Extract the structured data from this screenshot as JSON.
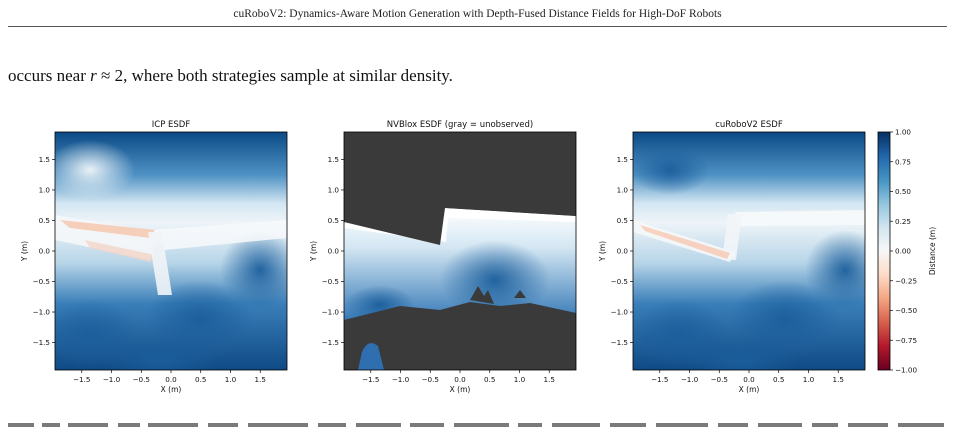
{
  "header": {
    "running_title": "cuRoboV2: Dynamics-Aware Motion Generation with Depth-Fused Distance Fields for High-DoF Robots"
  },
  "body": {
    "line_prefix": "occurs near ",
    "line_math_r": "r",
    "line_math_rest": " ≈ 2",
    "line_suffix": ", where both strategies sample at similar density."
  },
  "figure": {
    "panels": [
      {
        "title": "ICP ESDF",
        "xlabel": "X (m)",
        "ylabel": "Y (m)"
      },
      {
        "title": "NVBlox ESDF (gray = unobserved)",
        "xlabel": "X (m)",
        "ylabel": "Y (m)"
      },
      {
        "title": "cuRoboV2 ESDF",
        "xlabel": "X (m)",
        "ylabel": "Y (m)"
      }
    ],
    "x_ticks": [
      "−1.5",
      "−1.0",
      "−0.5",
      "0.0",
      "0.5",
      "1.0",
      "1.5"
    ],
    "y_ticks": [
      "1.5",
      "1.0",
      "0.5",
      "0.0",
      "−0.5",
      "−1.0",
      "−1.5"
    ],
    "colorbar": {
      "label": "Distance (m)",
      "ticks": [
        "1.00",
        "0.75",
        "0.50",
        "0.25",
        "0.00",
        "−0.25",
        "−0.50",
        "−0.75",
        "−1.00"
      ],
      "colormap": [
        "#67001f",
        "#b2182b",
        "#d6604d",
        "#f4a582",
        "#fddbc7",
        "#f7f7f7",
        "#d1e5f0",
        "#92c5de",
        "#4393c3",
        "#2166ac",
        "#053061"
      ]
    },
    "unobserved_color": "#3a3a3a"
  }
}
